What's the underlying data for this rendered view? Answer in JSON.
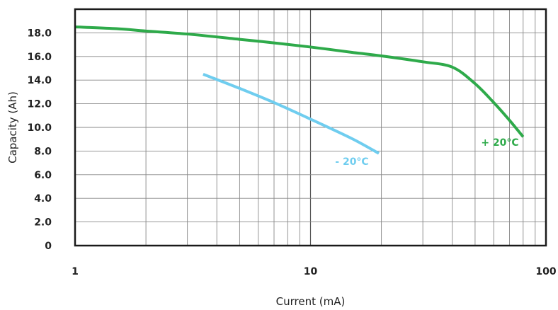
{
  "chart_data": {
    "type": "line",
    "xlabel": "Current (mA)",
    "ylabel": "Capacity (Ah)",
    "xscale": "log",
    "xlim": [
      1,
      100
    ],
    "ylim": [
      0,
      20
    ],
    "x_tick_labels": [
      "1",
      "10",
      "100"
    ],
    "y_tick_labels": [
      "0",
      "2.0",
      "4.0",
      "6.0",
      "8.0",
      "10.0",
      "12.0",
      "14.0",
      "16.0",
      "18.0"
    ],
    "grid": true,
    "series": [
      {
        "name": "+ 20°C",
        "color": "#2eaa4a",
        "x": [
          1,
          1.5,
          2,
          3,
          5,
          7,
          10,
          15,
          20,
          30,
          40,
          50,
          60,
          70,
          80
        ],
        "y": [
          18.5,
          18.35,
          18.15,
          17.9,
          17.45,
          17.15,
          16.8,
          16.35,
          16.05,
          15.55,
          15.1,
          13.7,
          12.1,
          10.6,
          9.2
        ]
      },
      {
        "name": "- 20°C",
        "color": "#6fcdef",
        "x": [
          3.5,
          5,
          7,
          10,
          15,
          19.5
        ],
        "y": [
          14.5,
          13.3,
          12.1,
          10.7,
          9.05,
          7.8
        ]
      }
    ]
  }
}
